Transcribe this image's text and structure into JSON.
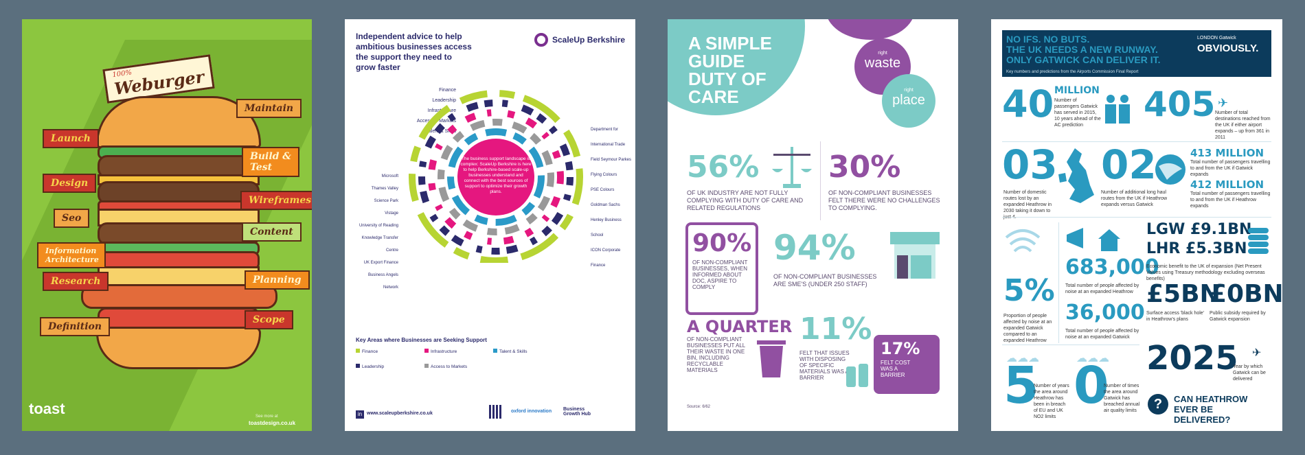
{
  "panel1": {
    "burger_badge_top": "100%",
    "burger_title": "Weburger",
    "tags_left": [
      "Launch",
      "Design",
      "Seo",
      "Information Architecture",
      "Research",
      "Definition"
    ],
    "tags_right": [
      "Maintain",
      "Build & Test",
      "Wireframes",
      "Content",
      "Planning",
      "Scope"
    ],
    "brand": "toast",
    "footer_small": "See more at",
    "footer_site": "toastdesign.co.uk"
  },
  "panel2": {
    "intro": "Independent advice to help ambitious businesses access the support they need to grow faster",
    "brand": "ScaleUp Berkshire",
    "row_labels": [
      "Finance",
      "Leadership",
      "Infrastructure",
      "Access to Markets",
      "Talent & Skills"
    ],
    "center_text": "The business support landscape is complex: ScaleUp Berkshire is here to help Berkshire-based scale-up businesses understand and connect with the best sources of support to optimize their growth plans.",
    "left_labels": [
      "Microsoft",
      "Thames Valley Science Park",
      "Vistage",
      "University of Reading Knowledge Transfer Centre",
      "UK Export Finance",
      "Business Angels Network"
    ],
    "right_labels": [
      "Department for International Trade",
      "Field Seymour Parkes",
      "Flying Colours",
      "PSE Colours",
      "Goldman Sachs",
      "Henley Business School",
      "ICON Corporate Finance"
    ],
    "legend_title": "Key Areas where Businesses are Seeking Support",
    "legend": [
      {
        "name": "Finance",
        "color": "#b7d433"
      },
      {
        "name": "Infrastructure",
        "color": "#e5177f"
      },
      {
        "name": "Talent & Skills",
        "color": "#2a9ac8"
      },
      {
        "name": "Leadership",
        "color": "#2b2a6b"
      },
      {
        "name": "Access to Markets",
        "color": "#999999"
      }
    ],
    "website": "www.scaleupberkshire.co.uk",
    "partners": [
      "oxford innovation",
      "Business Growth Hub"
    ]
  },
  "panel3": {
    "title_lines": [
      "A SIMPLE",
      "GUIDE",
      "DUTY OF",
      "CARE"
    ],
    "circle1_small": "right",
    "circle1_big": "waste",
    "circle2_small": "right",
    "circle2_big": "place",
    "stat1_value": "56%",
    "stat1_text": "OF UK INDUSTRY ARE NOT FULLY COMPLYING WITH DUTY OF CARE AND RELATED REGULATIONS",
    "stat2_value": "30%",
    "stat2_text": "OF NON-COMPLIANT BUSINESSES FELT THERE WERE NO CHALLENGES TO COMPLYING.",
    "stat3_value": "90%",
    "stat3_text": "OF NON-COMPLIANT BUSINESSES, WHEN INFORMED ABOUT DOC, ASPIRE TO COMPLY",
    "stat4_value": "94%",
    "stat4_text": "OF NON-COMPLIANT BUSINESSES ARE SME'S (UNDER 250 STAFF)",
    "stat5_value": "A QUARTER",
    "stat5_text": "OF NON-COMPLIANT BUSINESSES PUT ALL THEIR WASTE IN ONE BIN, INCLUDING RECYCLABLE MATERIALS",
    "stat6_value": "11%",
    "stat6_text": "FELT THAT ISSUES WITH DISPOSING OF SPECIFIC MATERIALS WAS A BARRIER",
    "stat7_value": "17%",
    "stat7_text": "FELT COST WAS A BARRIER",
    "source": "Source: 6/62"
  },
  "panel4": {
    "headline1": "NO IFS. NO BUTS.",
    "headline2": "THE UK NEEDS A NEW RUNWAY.",
    "headline3": "ONLY GATWICK CAN DELIVER IT.",
    "brand_small": "LONDON Gatwick",
    "brand_big": "OBVIOUSLY.",
    "subtitle": "Key numbers and predictions from the Airports Commission Final Report",
    "s1_num": "40",
    "s1_unit": "MILLION",
    "s1_text": "Number of passengers Gatwick has served in 2015, 10 years ahead of the AC prediction",
    "s2_num": "405",
    "s2_text": "Number of total destinations reached from the UK if either airport expands – up from 361 in 2011",
    "s3_num": "03",
    "s3_text": "Number of domestic routes lost by an expanded Heathrow in 2030 taking it down to just 4.",
    "s4_num": "02",
    "s4_text": "Number of additional long haul routes from the UK if Heathrow expands versus Gatwick",
    "s5_num": "413 MILLION",
    "s5_text": "Total number of passengers travelling to and from the UK if Gatwick expands",
    "s6_num": "412 MILLION",
    "s6_text": "Total number of passengers travelling to and from the UK if Heathrow expands",
    "s7_num": "5%",
    "s7_text": "Proportion of people affected by noise at an expanded Gatwick compared to an expanded Heathrow",
    "s8_num": "683,000",
    "s8_text": "Total number of people affected by noise at an expanded Heathrow",
    "s9_num": "36,000",
    "s9_text": "Total number of people affected by noise at an expanded Gatwick",
    "s10_line1": "LGW £9.1BN",
    "s10_line2": "LHR £5.3BN",
    "s10_text": "Economic benefit to the UK of expansion (Net Present Values using Treasury methodology excluding overseas benefits)",
    "s11_num": "£5BN",
    "s11_text": "Surface access 'black hole' in Heathrow's plans",
    "s12_num": "£0BN",
    "s12_text": "Public subsidy required by Gatwick expansion",
    "s13_num": "5",
    "s13_text": "Number of years the area around Heathrow has been in breach of EU and UK NO2 limits",
    "s14_num": "0",
    "s14_text": "Number of times the area around Gatwick has breached annual air quality limits",
    "s15_num": "2025",
    "s15_text": "Year by which Gatwick can be delivered",
    "question": "CAN HEATHROW EVER BE DELIVERED?"
  }
}
